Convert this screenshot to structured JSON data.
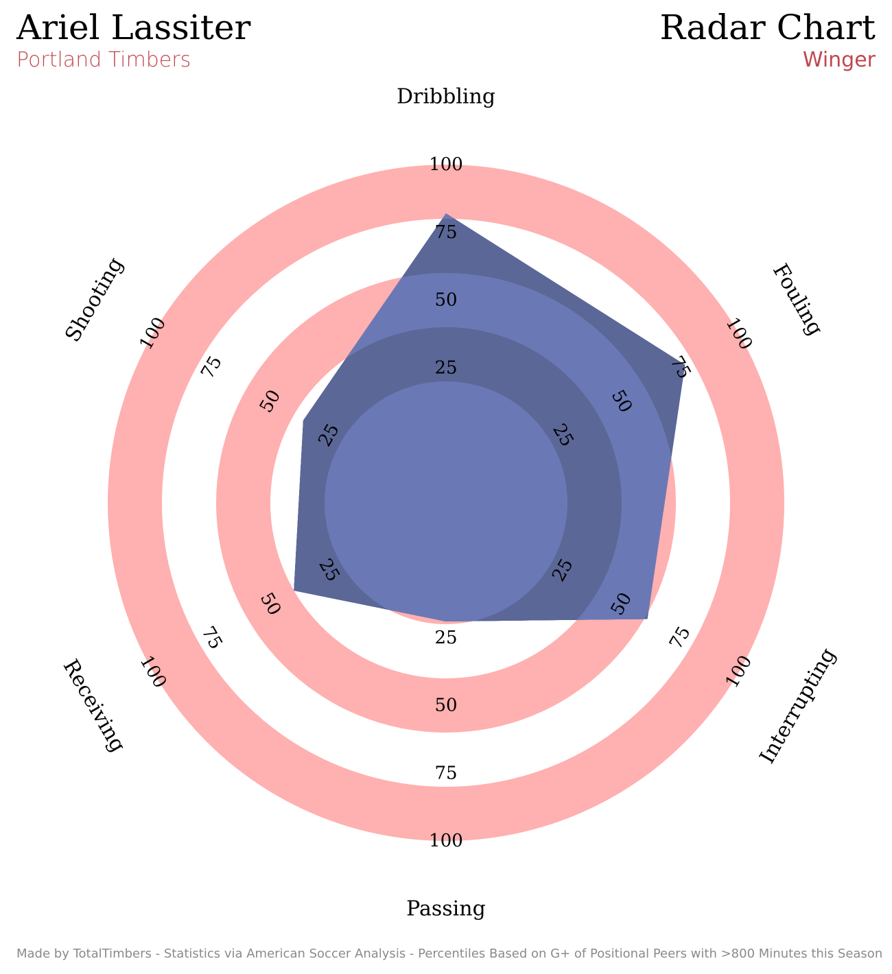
{
  "header": {
    "player_name": "Ariel Lassiter",
    "team_name": "Portland Timbers",
    "chart_title": "Radar Chart",
    "position": "Winger",
    "accent_color": "#c0474e"
  },
  "footer": {
    "credit": "Made by TotalTimbers - Statistics via American Soccer Analysis - Percentiles Based on G+ of Positional Peers with >800 Minutes this Season"
  },
  "chart_data": {
    "type": "radar",
    "title": "Radar Chart",
    "axes": [
      "Dribbling",
      "Fouling",
      "Interrupting",
      "Passing",
      "Receiving",
      "Shooting"
    ],
    "ticks": [
      "25",
      "50",
      "75",
      "100"
    ],
    "range": [
      0,
      100
    ],
    "series": [
      {
        "values": [
          82,
          77,
          61,
          19,
          40,
          36
        ],
        "color": "#3b4a8c"
      }
    ],
    "colors": {
      "ring_odd": "#ffb0b0",
      "ring_even": "#ffffff",
      "inner_odd": "#6a79b5",
      "inner_even": "#5b6796",
      "polygon": "#3b4a8c"
    }
  }
}
